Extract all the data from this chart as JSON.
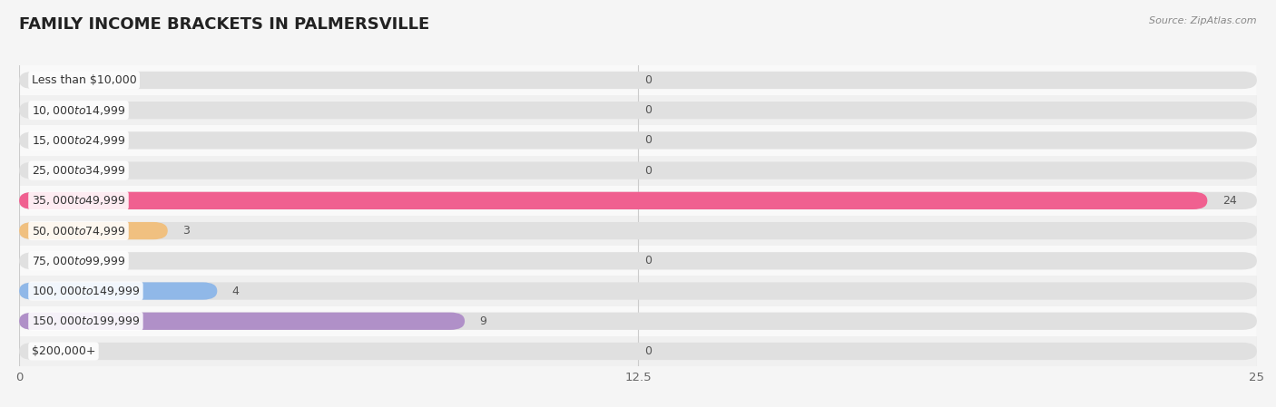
{
  "title": "FAMILY INCOME BRACKETS IN PALMERSVILLE",
  "source": "Source: ZipAtlas.com",
  "categories": [
    "Less than $10,000",
    "$10,000 to $14,999",
    "$15,000 to $24,999",
    "$25,000 to $34,999",
    "$35,000 to $49,999",
    "$50,000 to $74,999",
    "$75,000 to $99,999",
    "$100,000 to $149,999",
    "$150,000 to $199,999",
    "$200,000+"
  ],
  "values": [
    0,
    0,
    0,
    0,
    24,
    3,
    0,
    4,
    9,
    0
  ],
  "bar_colors": [
    "#a8c8e8",
    "#c8a8d8",
    "#7ecdc4",
    "#b0b8e8",
    "#f06090",
    "#f0c080",
    "#f0a898",
    "#90b8e8",
    "#b090c8",
    "#7ecdc4"
  ],
  "xlim": [
    0,
    25
  ],
  "xticks": [
    0,
    12.5,
    25
  ],
  "background_color": "#f5f5f5",
  "row_colors": [
    "#f9f9f9",
    "#f0f0f0"
  ],
  "bg_bar_color": "#e0e0e0",
  "title_fontsize": 13,
  "bar_height": 0.58,
  "label_fontsize": 9.0,
  "value_label_fontsize": 9.0
}
